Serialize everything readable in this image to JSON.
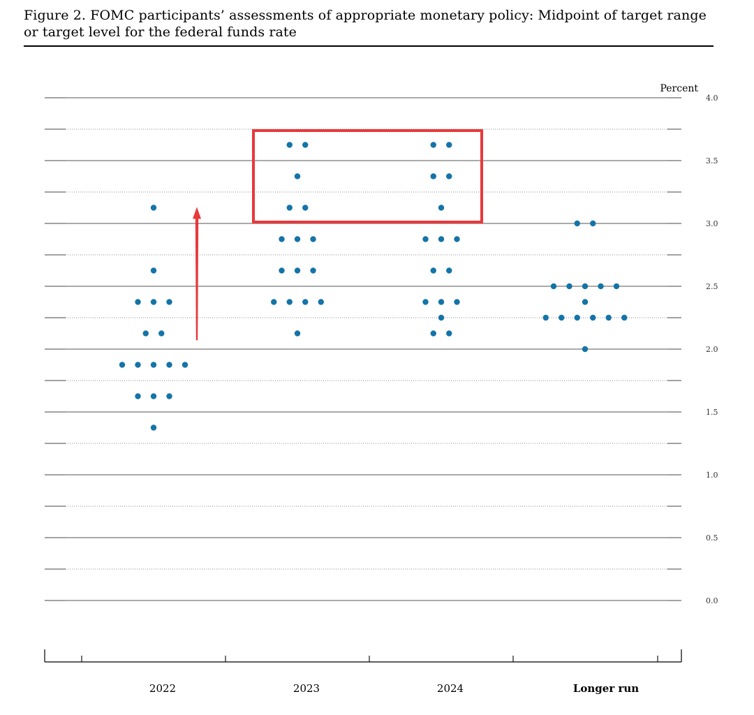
{
  "figure": {
    "title": "Figure 2.  FOMC participants’ assessments of appropriate monetary policy:  Midpoint of target range or target level for the federal funds rate"
  },
  "chart_data": {
    "type": "scatter",
    "unit_label": "Percent",
    "ylim": [
      0.0,
      4.0
    ],
    "y_ticks": [
      "4.0",
      "3.5",
      "3.0",
      "2.5",
      "2.0",
      "1.5",
      "1.0",
      "0.5",
      "0.0"
    ],
    "categories": [
      "2022",
      "2023",
      "2024",
      "Longer run"
    ],
    "longer_run_bold": true,
    "dot_color": "#1474a8",
    "grid": "dotted every 0.25, solid every 0.5",
    "points": {
      "2022": [
        {
          "y": 3.125,
          "count": 1
        },
        {
          "y": 2.625,
          "count": 1
        },
        {
          "y": 2.375,
          "count": 3
        },
        {
          "y": 2.125,
          "count": 2
        },
        {
          "y": 1.875,
          "count": 5
        },
        {
          "y": 1.625,
          "count": 3
        },
        {
          "y": 1.375,
          "count": 1
        }
      ],
      "2023": [
        {
          "y": 3.625,
          "count": 2
        },
        {
          "y": 3.375,
          "count": 1
        },
        {
          "y": 3.125,
          "count": 2
        },
        {
          "y": 2.875,
          "count": 3
        },
        {
          "y": 2.625,
          "count": 3
        },
        {
          "y": 2.375,
          "count": 4
        },
        {
          "y": 2.125,
          "count": 1
        }
      ],
      "2024": [
        {
          "y": 3.625,
          "count": 2
        },
        {
          "y": 3.375,
          "count": 2
        },
        {
          "y": 3.125,
          "count": 1
        },
        {
          "y": 2.875,
          "count": 3
        },
        {
          "y": 2.625,
          "count": 2
        },
        {
          "y": 2.375,
          "count": 3
        },
        {
          "y": 2.25,
          "count": 1
        },
        {
          "y": 2.125,
          "count": 2
        }
      ],
      "Longer run": [
        {
          "y": 3.0,
          "count": 2
        },
        {
          "y": 2.5,
          "count": 5
        },
        {
          "y": 2.375,
          "count": 1
        },
        {
          "y": 2.25,
          "count": 6
        },
        {
          "y": 2.0,
          "count": 1
        }
      ]
    },
    "annotations": {
      "highlight_box": {
        "color": "#e8393b",
        "from_category": "2023",
        "to_category": "2024",
        "y_range": [
          3.0,
          3.75
        ]
      },
      "arrow": {
        "color": "#e8393b",
        "category": "2022",
        "from_y": 2.07,
        "to_y": 3.12
      }
    }
  }
}
